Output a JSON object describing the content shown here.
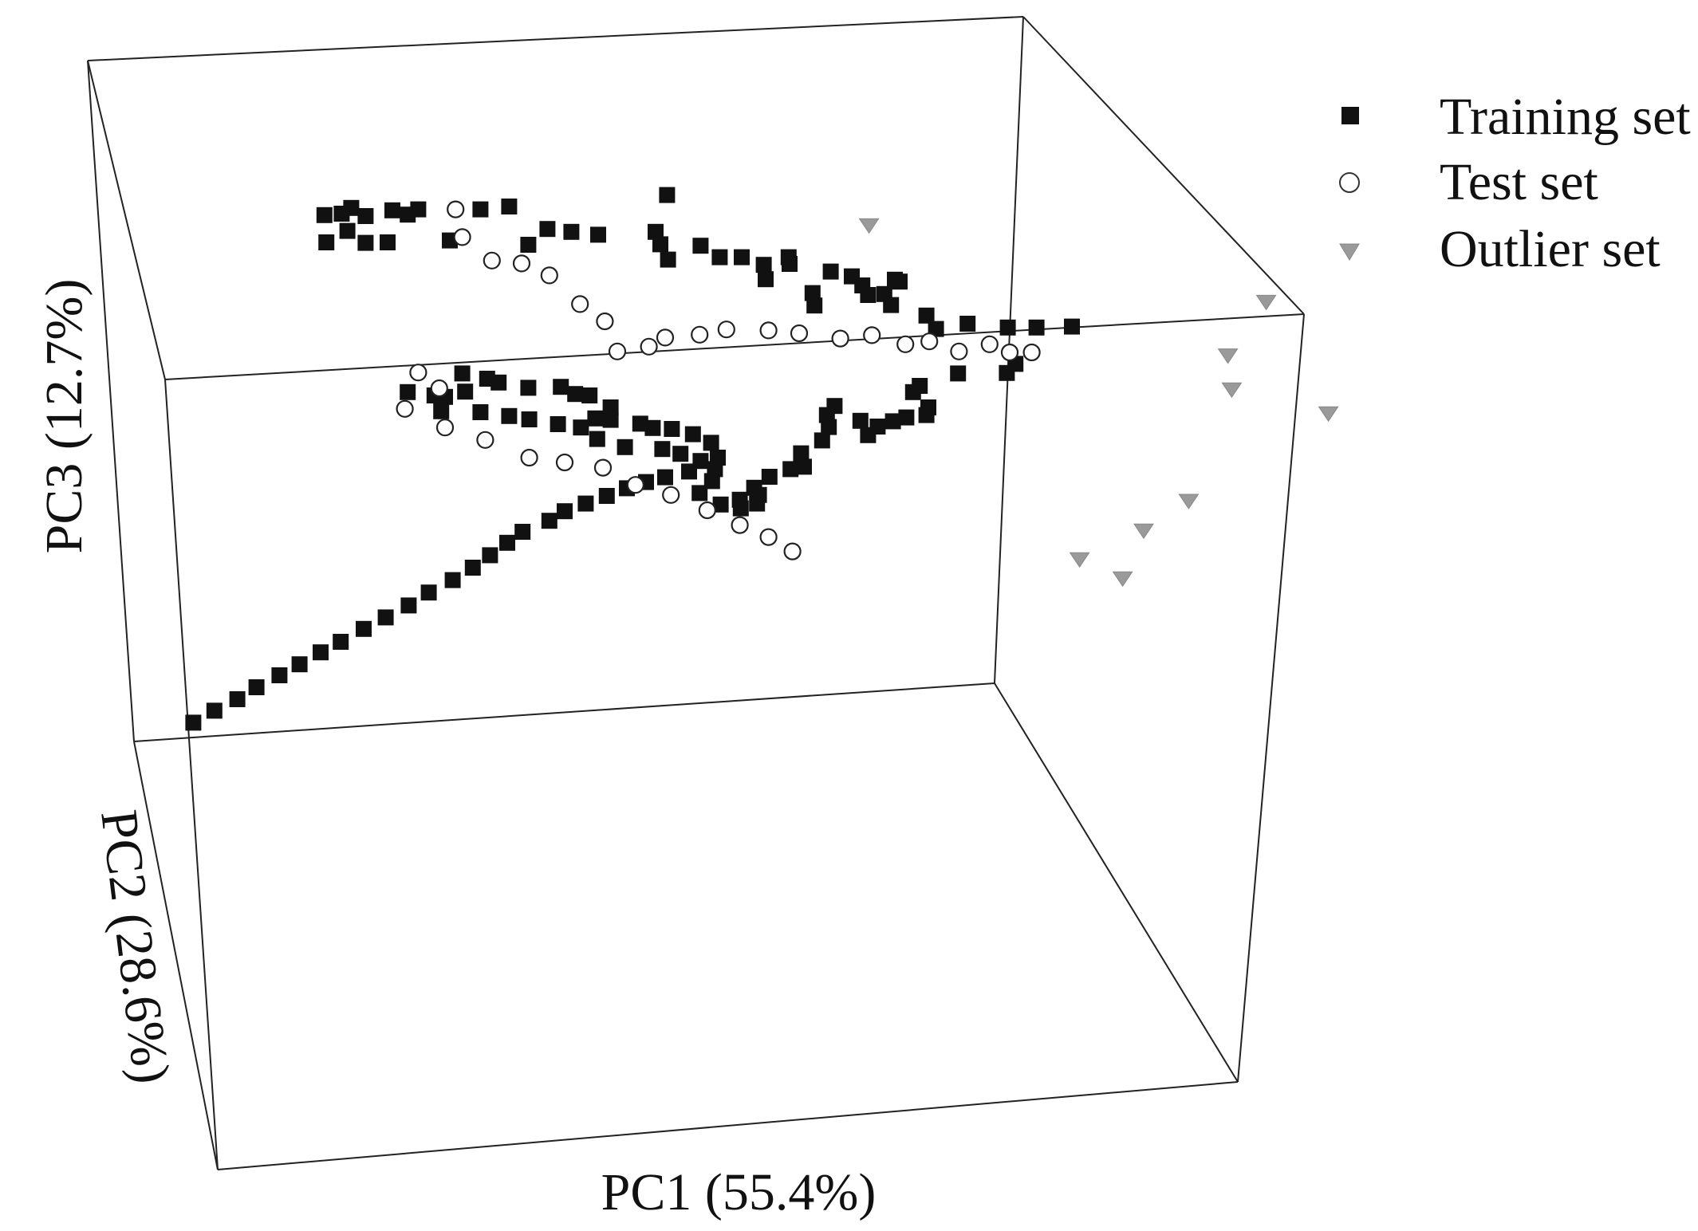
{
  "chart_data": {
    "type": "scatter",
    "projection": "3d",
    "axes": {
      "x": {
        "label": "PC1 (55.4%)"
      },
      "y": {
        "label": "PC2 (28.6%)"
      },
      "z": {
        "label": "PC3 (12.7%)"
      }
    },
    "grid": false,
    "legend_placement": "top-right",
    "series": [
      {
        "name": "Training set",
        "marker": "square",
        "color": "#111111",
        "points": [
          [
            0.522,
            0.141
          ],
          [
            0.357,
            0.165
          ],
          [
            0.192,
            0.168
          ],
          [
            0.262,
            0.171
          ],
          [
            0.327,
            0.171
          ],
          [
            0.235,
            0.173
          ],
          [
            0.251,
            0.182
          ],
          [
            0.164,
            0.183
          ],
          [
            0.182,
            0.18
          ],
          [
            0.207,
            0.185
          ],
          [
            0.188,
            0.216
          ],
          [
            0.166,
            0.24
          ],
          [
            0.207,
            0.241
          ],
          [
            0.23,
            0.24
          ],
          [
            0.295,
            0.236
          ],
          [
            0.377,
            0.245
          ],
          [
            0.397,
            0.212
          ],
          [
            0.422,
            0.218
          ],
          [
            0.45,
            0.224
          ],
          [
            0.51,
            0.218
          ],
          [
            0.515,
            0.244
          ],
          [
            0.557,
            0.247
          ],
          [
            0.523,
            0.276
          ],
          [
            0.577,
            0.271
          ],
          [
            0.6,
            0.271
          ],
          [
            0.649,
            0.271
          ],
          [
            0.65,
            0.285
          ],
          [
            0.623,
            0.287
          ],
          [
            0.625,
            0.317
          ],
          [
            0.693,
            0.301
          ],
          [
            0.715,
            0.311
          ],
          [
            0.674,
            0.346
          ],
          [
            0.732,
            0.35
          ],
          [
            0.726,
            0.33
          ],
          [
            0.76,
            0.318
          ],
          [
            0.765,
            0.322
          ],
          [
            0.749,
            0.348
          ],
          [
            0.676,
            0.372
          ],
          [
            0.756,
            0.371
          ],
          [
            0.793,
            0.393
          ],
          [
            0.803,
            0.421
          ],
          [
            0.836,
            0.41
          ],
          [
            0.878,
            0.418
          ],
          [
            0.908,
            0.418
          ],
          [
            0.945,
            0.416
          ],
          [
            0.886,
            0.494
          ],
          [
            0.877,
            0.513
          ],
          [
            0.826,
            0.514
          ],
          [
            0.786,
            0.54
          ],
          [
            0.779,
            0.553
          ],
          [
            0.793,
            0.601
          ],
          [
            0.795,
            0.585
          ],
          [
            0.772,
            0.606
          ],
          [
            0.758,
            0.614
          ],
          [
            0.742,
            0.625
          ],
          [
            0.732,
            0.643
          ],
          [
            0.724,
            0.613
          ],
          [
            0.697,
            0.582
          ],
          [
            0.689,
            0.601
          ],
          [
            0.691,
            0.626
          ],
          [
            0.684,
            0.654
          ],
          [
            0.662,
            0.681
          ],
          [
            0.665,
            0.709
          ],
          [
            0.651,
            0.714
          ],
          [
            0.629,
            0.73
          ],
          [
            0.613,
            0.753
          ],
          [
            0.618,
            0.768
          ],
          [
            0.598,
            0.778
          ],
          [
            0.616,
            0.786
          ],
          [
            0.599,
            0.796
          ],
          [
            0.578,
            0.788
          ],
          [
            0.556,
            0.764
          ],
          [
            0.569,
            0.739
          ],
          [
            0.572,
            0.714
          ],
          [
            0.575,
            0.69
          ],
          [
            0.568,
            0.659
          ],
          [
            0.549,
            0.641
          ],
          [
            0.527,
            0.63
          ],
          [
            0.507,
            0.628
          ],
          [
            0.494,
            0.619
          ],
          [
            0.463,
            0.611
          ],
          [
            0.447,
            0.608
          ],
          [
            0.463,
            0.585
          ],
          [
            0.441,
            0.56
          ],
          [
            0.426,
            0.557
          ],
          [
            0.411,
            0.542
          ],
          [
            0.377,
            0.544
          ],
          [
            0.346,
            0.533
          ],
          [
            0.334,
            0.525
          ],
          [
            0.308,
            0.514
          ],
          [
            0.311,
            0.552
          ],
          [
            0.29,
            0.563
          ],
          [
            0.279,
            0.56
          ],
          [
            0.251,
            0.553
          ],
          [
            0.286,
            0.593
          ],
          [
            0.327,
            0.595
          ],
          [
            0.357,
            0.603
          ],
          [
            0.378,
            0.61
          ],
          [
            0.408,
            0.62
          ],
          [
            0.432,
            0.627
          ],
          [
            0.449,
            0.651
          ],
          [
            0.478,
            0.668
          ],
          [
            0.517,
            0.672
          ],
          [
            0.536,
            0.682
          ],
          [
            0.557,
            0.697
          ],
          [
            0.545,
            0.719
          ],
          [
            0.52,
            0.731
          ],
          [
            0.5,
            0.741
          ],
          [
            0.48,
            0.754
          ],
          [
            0.459,
            0.77
          ],
          [
            0.437,
            0.786
          ],
          [
            0.415,
            0.802
          ],
          [
            0.399,
            0.822
          ],
          [
            0.371,
            0.845
          ],
          [
            0.355,
            0.868
          ],
          [
            0.337,
            0.894
          ],
          [
            0.319,
            0.92
          ],
          [
            0.298,
            0.946
          ],
          [
            0.273,
            0.972
          ],
          [
            0.252,
            0.999
          ],
          [
            0.228,
            1.024
          ],
          [
            0.205,
            1.048
          ],
          [
            0.181,
            1.075
          ],
          [
            0.16,
            1.097
          ],
          [
            0.138,
            1.122
          ],
          [
            0.117,
            1.145
          ],
          [
            0.093,
            1.17
          ],
          [
            0.073,
            1.195
          ],
          [
            0.049,
            1.219
          ],
          [
            0.027,
            1.244
          ]
        ]
      },
      {
        "name": "Test set",
        "marker": "open-circle",
        "color": "#ffffff",
        "points": [
          [
            0.301,
            0.171
          ],
          [
            0.308,
            0.229
          ],
          [
            0.339,
            0.278
          ],
          [
            0.37,
            0.284
          ],
          [
            0.399,
            0.309
          ],
          [
            0.431,
            0.369
          ],
          [
            0.457,
            0.405
          ],
          [
            0.47,
            0.468
          ],
          [
            0.503,
            0.458
          ],
          [
            0.52,
            0.439
          ],
          [
            0.556,
            0.433
          ],
          [
            0.584,
            0.422
          ],
          [
            0.628,
            0.424
          ],
          [
            0.66,
            0.43
          ],
          [
            0.703,
            0.441
          ],
          [
            0.736,
            0.434
          ],
          [
            0.771,
            0.453
          ],
          [
            0.796,
            0.447
          ],
          [
            0.827,
            0.468
          ],
          [
            0.859,
            0.453
          ],
          [
            0.88,
            0.47
          ],
          [
            0.903,
            0.47
          ],
          [
            0.262,
            0.512
          ],
          [
            0.284,
            0.545
          ],
          [
            0.248,
            0.588
          ],
          [
            0.29,
            0.627
          ],
          [
            0.332,
            0.653
          ],
          [
            0.378,
            0.69
          ],
          [
            0.415,
            0.7
          ],
          [
            0.455,
            0.711
          ],
          [
            0.489,
            0.747
          ],
          [
            0.526,
            0.768
          ],
          [
            0.564,
            0.8
          ],
          [
            0.598,
            0.831
          ],
          [
            0.628,
            0.856
          ],
          [
            0.653,
            0.886
          ]
        ]
      },
      {
        "name": "Outlier set",
        "marker": "triangle-down",
        "color": "#9a9a9a",
        "points": [
          [
            1.148,
            0.364
          ],
          [
            1.108,
            0.476
          ],
          [
            1.112,
            0.547
          ],
          [
            1.213,
            0.597
          ],
          [
            1.067,
            0.78
          ],
          [
            1.02,
            0.842
          ],
          [
            0.953,
            0.902
          ],
          [
            0.998,
            0.942
          ],
          [
            0.733,
            0.204
          ]
        ]
      }
    ]
  }
}
